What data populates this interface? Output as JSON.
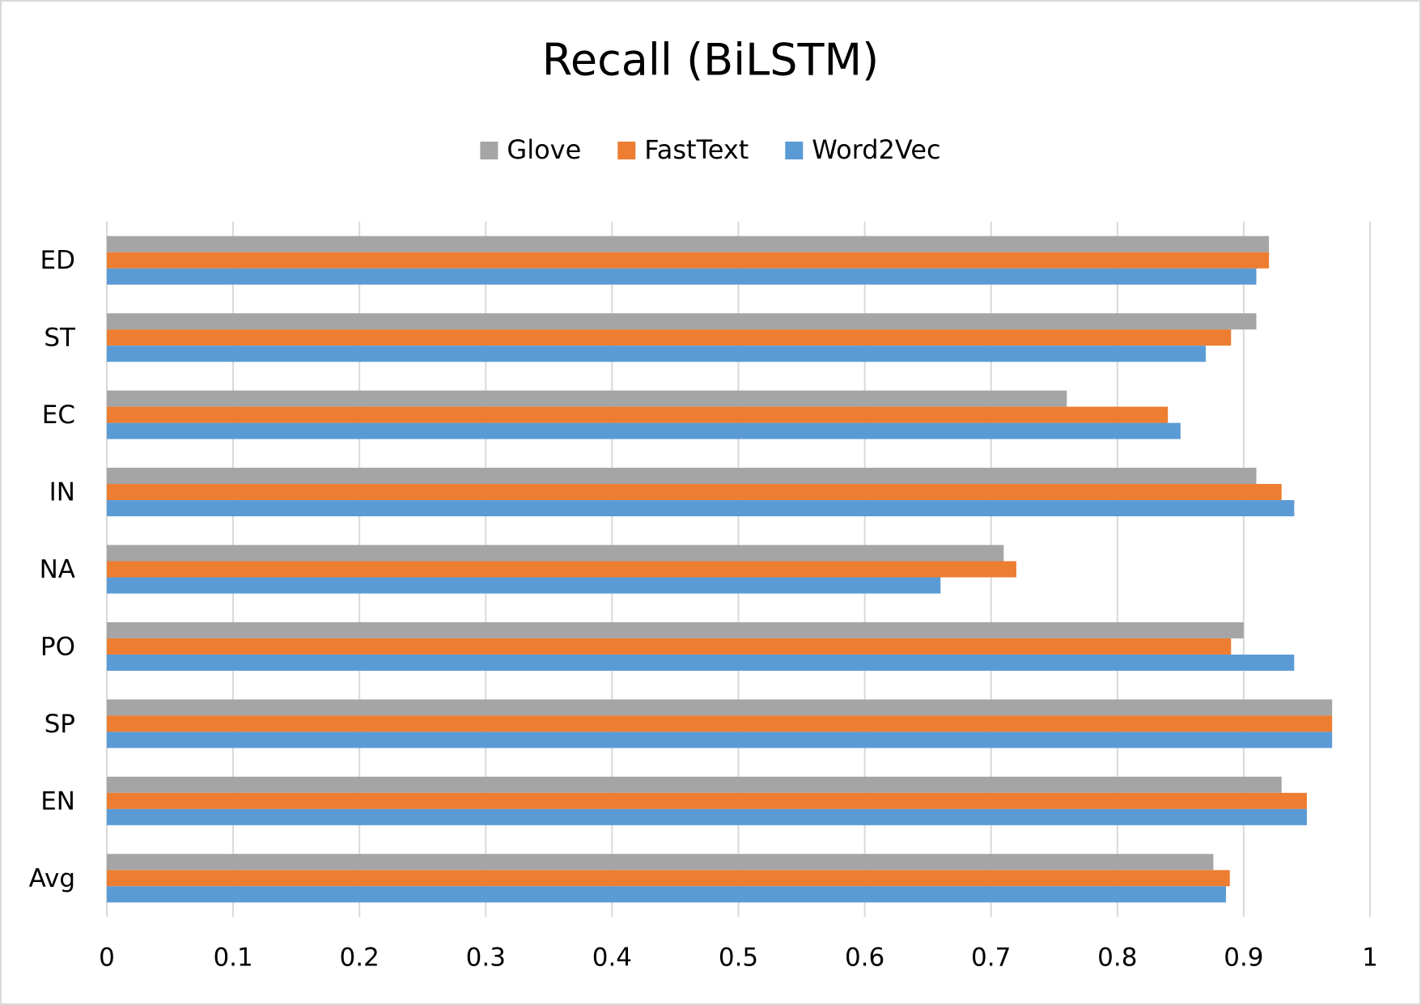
{
  "chart_data": {
    "type": "barh",
    "title": "Recall (BiLSTM)",
    "categories": [
      "ED",
      "ST",
      "EC",
      "IN",
      "NA",
      "PO",
      "SP",
      "EN",
      "Avg"
    ],
    "series": [
      {
        "name": "Glove",
        "color": "#a5a5a5",
        "values": [
          0.92,
          0.91,
          0.76,
          0.91,
          0.71,
          0.9,
          0.97,
          0.93,
          0.876
        ]
      },
      {
        "name": "FastText",
        "color": "#ed7d31",
        "values": [
          0.92,
          0.89,
          0.84,
          0.93,
          0.72,
          0.89,
          0.97,
          0.95,
          0.889
        ]
      },
      {
        "name": "Word2Vec",
        "color": "#5b9bd5",
        "values": [
          0.91,
          0.87,
          0.85,
          0.94,
          0.66,
          0.94,
          0.97,
          0.95,
          0.886
        ]
      }
    ],
    "xlim": [
      0,
      1
    ],
    "xticks": [
      0,
      0.1,
      0.2,
      0.3,
      0.4,
      0.5,
      0.6,
      0.7,
      0.8,
      0.9,
      1
    ],
    "grid": true,
    "legend": "top"
  }
}
